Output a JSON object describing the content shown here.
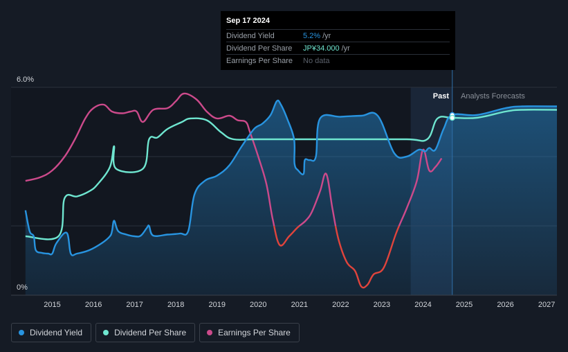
{
  "tooltip": {
    "date": "Sep 17 2024",
    "rows": [
      {
        "label": "Dividend Yield",
        "value": "5.2%",
        "unit": "/yr"
      },
      {
        "label": "Dividend Per Share",
        "value": "JP¥34.000",
        "unit": "/yr"
      },
      {
        "label": "Earnings Per Share",
        "value": "No data",
        "unit": ""
      }
    ]
  },
  "legend": {
    "items": [
      {
        "label": "Dividend Yield",
        "color": "#2894e0"
      },
      {
        "label": "Dividend Per Share",
        "color": "#6fe6d0"
      },
      {
        "label": "Earnings Per Share",
        "color": "#cc4a8b"
      }
    ]
  },
  "chart_data": {
    "type": "line",
    "y_tick_labels": [
      "6.0%",
      "0%"
    ],
    "ylim": [
      0,
      6
    ],
    "x_tick_labels": [
      "2015",
      "2016",
      "2017",
      "2018",
      "2019",
      "2020",
      "2021",
      "2022",
      "2023",
      "2024",
      "2025",
      "2026",
      "2027"
    ],
    "xlim": [
      2014.0,
      2027.25
    ],
    "past_label": "Past",
    "forecast_label": "Analysts Forecasts",
    "forecast_start": 2023.7,
    "cursor_x": 2024.71,
    "colors": {
      "yield": "#2894e0",
      "dps": "#6fe6d0",
      "eps_pos": "#cc4a8b",
      "eps_neg": "#e0443c"
    },
    "series": [
      {
        "name": "Dividend Yield",
        "points": [
          [
            2014.35,
            2.45
          ],
          [
            2014.45,
            1.85
          ],
          [
            2014.55,
            1.7
          ],
          [
            2014.6,
            1.3
          ],
          [
            2014.75,
            1.22
          ],
          [
            2014.9,
            1.2
          ],
          [
            2015.0,
            1.2
          ],
          [
            2015.1,
            1.5
          ],
          [
            2015.35,
            1.8
          ],
          [
            2015.45,
            1.2
          ],
          [
            2015.6,
            1.2
          ],
          [
            2015.9,
            1.3
          ],
          [
            2016.2,
            1.5
          ],
          [
            2016.4,
            1.7
          ],
          [
            2016.45,
            1.85
          ],
          [
            2016.5,
            2.15
          ],
          [
            2016.6,
            1.85
          ],
          [
            2016.8,
            1.75
          ],
          [
            2017.0,
            1.7
          ],
          [
            2017.15,
            1.72
          ],
          [
            2017.3,
            1.95
          ],
          [
            2017.35,
            2.0
          ],
          [
            2017.45,
            1.72
          ],
          [
            2017.8,
            1.75
          ],
          [
            2018.1,
            1.78
          ],
          [
            2018.3,
            1.85
          ],
          [
            2018.45,
            2.9
          ],
          [
            2018.7,
            3.3
          ],
          [
            2019.0,
            3.45
          ],
          [
            2019.3,
            3.75
          ],
          [
            2019.6,
            4.3
          ],
          [
            2019.9,
            4.8
          ],
          [
            2020.1,
            4.95
          ],
          [
            2020.3,
            5.2
          ],
          [
            2020.45,
            5.6
          ],
          [
            2020.55,
            5.5
          ],
          [
            2020.7,
            5.1
          ],
          [
            2020.87,
            4.5
          ],
          [
            2020.88,
            3.8
          ],
          [
            2020.97,
            3.6
          ],
          [
            2021.1,
            3.5
          ],
          [
            2021.13,
            3.9
          ],
          [
            2021.25,
            3.9
          ],
          [
            2021.4,
            4.0
          ],
          [
            2021.5,
            5.1
          ],
          [
            2022.0,
            5.15
          ],
          [
            2022.5,
            5.18
          ],
          [
            2022.9,
            5.18
          ],
          [
            2023.3,
            4.1
          ],
          [
            2023.6,
            4.0
          ],
          [
            2023.9,
            4.2
          ],
          [
            2024.05,
            4.15
          ],
          [
            2024.15,
            4.25
          ],
          [
            2024.3,
            4.2
          ],
          [
            2024.5,
            4.8
          ],
          [
            2024.71,
            5.2
          ],
          [
            2025.3,
            5.2
          ],
          [
            2026.0,
            5.4
          ],
          [
            2026.4,
            5.45
          ],
          [
            2027.25,
            5.45
          ]
        ]
      },
      {
        "name": "Dividend Per Share",
        "points": [
          [
            2014.35,
            1.7
          ],
          [
            2015.15,
            1.7
          ],
          [
            2015.3,
            2.8
          ],
          [
            2015.6,
            2.85
          ],
          [
            2015.9,
            3.0
          ],
          [
            2016.1,
            3.2
          ],
          [
            2016.4,
            3.7
          ],
          [
            2016.5,
            4.3
          ],
          [
            2016.55,
            3.65
          ],
          [
            2017.2,
            3.65
          ],
          [
            2017.35,
            4.5
          ],
          [
            2017.55,
            4.55
          ],
          [
            2017.8,
            4.8
          ],
          [
            2018.15,
            5.0
          ],
          [
            2018.35,
            5.1
          ],
          [
            2018.75,
            5.05
          ],
          [
            2019.1,
            4.7
          ],
          [
            2019.4,
            4.5
          ],
          [
            2020.0,
            4.5
          ],
          [
            2022.0,
            4.5
          ],
          [
            2023.6,
            4.5
          ],
          [
            2024.1,
            4.5
          ],
          [
            2024.35,
            5.1
          ],
          [
            2024.71,
            5.12
          ],
          [
            2025.3,
            5.12
          ],
          [
            2026.0,
            5.3
          ],
          [
            2026.4,
            5.35
          ],
          [
            2027.25,
            5.35
          ]
        ]
      },
      {
        "name": "Earnings Per Share",
        "points": [
          [
            2014.35,
            3.3
          ],
          [
            2014.7,
            3.4
          ],
          [
            2015.0,
            3.6
          ],
          [
            2015.3,
            4.0
          ],
          [
            2015.55,
            4.5
          ],
          [
            2015.8,
            5.1
          ],
          [
            2016.0,
            5.4
          ],
          [
            2016.25,
            5.5
          ],
          [
            2016.45,
            5.3
          ],
          [
            2016.7,
            5.25
          ],
          [
            2016.9,
            5.3
          ],
          [
            2017.05,
            5.3
          ],
          [
            2017.2,
            5.0
          ],
          [
            2017.45,
            5.35
          ],
          [
            2017.8,
            5.4
          ],
          [
            2018.0,
            5.6
          ],
          [
            2018.2,
            5.82
          ],
          [
            2018.5,
            5.65
          ],
          [
            2018.75,
            5.3
          ],
          [
            2019.0,
            5.1
          ],
          [
            2019.3,
            5.18
          ],
          [
            2019.5,
            5.05
          ],
          [
            2019.7,
            5.0
          ],
          [
            2019.8,
            4.7
          ],
          [
            2020.0,
            4.0
          ],
          [
            2020.2,
            3.2
          ],
          [
            2020.35,
            2.2
          ],
          [
            2020.52,
            1.45
          ],
          [
            2020.75,
            1.7
          ],
          [
            2020.95,
            1.95
          ],
          [
            2021.15,
            2.15
          ],
          [
            2021.3,
            2.4
          ],
          [
            2021.5,
            3.0
          ],
          [
            2021.65,
            3.5
          ],
          [
            2021.8,
            2.5
          ],
          [
            2021.95,
            1.6
          ],
          [
            2022.15,
            0.95
          ],
          [
            2022.35,
            0.7
          ],
          [
            2022.5,
            0.25
          ],
          [
            2022.65,
            0.3
          ],
          [
            2022.8,
            0.6
          ],
          [
            2023.05,
            0.8
          ],
          [
            2023.35,
            1.8
          ],
          [
            2023.6,
            2.5
          ],
          [
            2023.85,
            3.3
          ],
          [
            2024.0,
            4.2
          ],
          [
            2024.15,
            3.6
          ],
          [
            2024.3,
            3.7
          ],
          [
            2024.45,
            3.95
          ]
        ]
      }
    ],
    "markers": [
      [
        2024.71,
        5.2
      ],
      [
        2024.71,
        5.12
      ]
    ]
  }
}
